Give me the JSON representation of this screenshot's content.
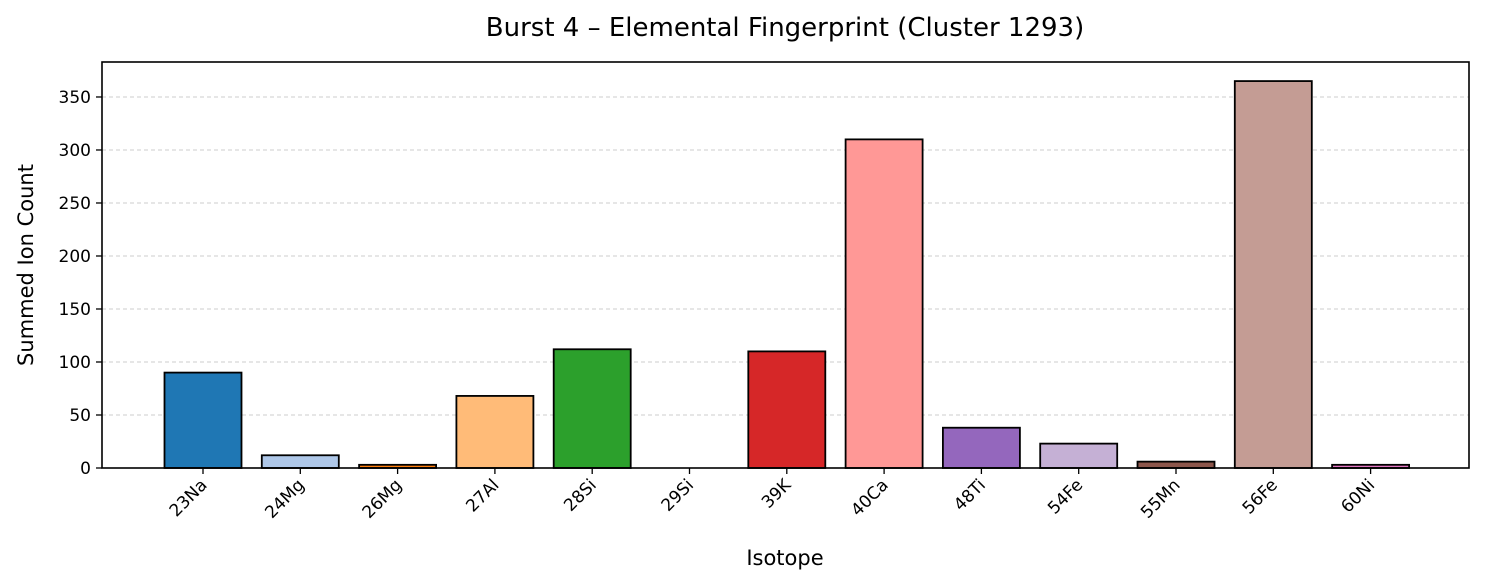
{
  "chart_data": {
    "type": "bar",
    "title": "Burst 4 – Elemental Fingerprint (Cluster 1293)",
    "xlabel": "Isotope",
    "ylabel": "Summed Ion Count",
    "categories": [
      "23Na",
      "24Mg",
      "26Mg",
      "27Al",
      "28Si",
      "29Si",
      "39K",
      "40Ca",
      "48Ti",
      "54Fe",
      "55Mn",
      "56Fe",
      "60Ni"
    ],
    "values": [
      90,
      12,
      3,
      68,
      112,
      0,
      110,
      310,
      38,
      23,
      6,
      365,
      3
    ],
    "colors": [
      "#1f77b4",
      "#aec7e8",
      "#ff7f0e",
      "#ffbb78",
      "#2ca02c",
      "#98df8a",
      "#d62728",
      "#ff9896",
      "#9467bd",
      "#c5b0d5",
      "#8c564b",
      "#c49c94",
      "#e377c2"
    ],
    "ylim": [
      0,
      383
    ],
    "yticks": [
      0,
      50,
      100,
      150,
      200,
      250,
      300,
      350
    ],
    "grid": "y-dashed",
    "xtick_rotation": 45
  }
}
